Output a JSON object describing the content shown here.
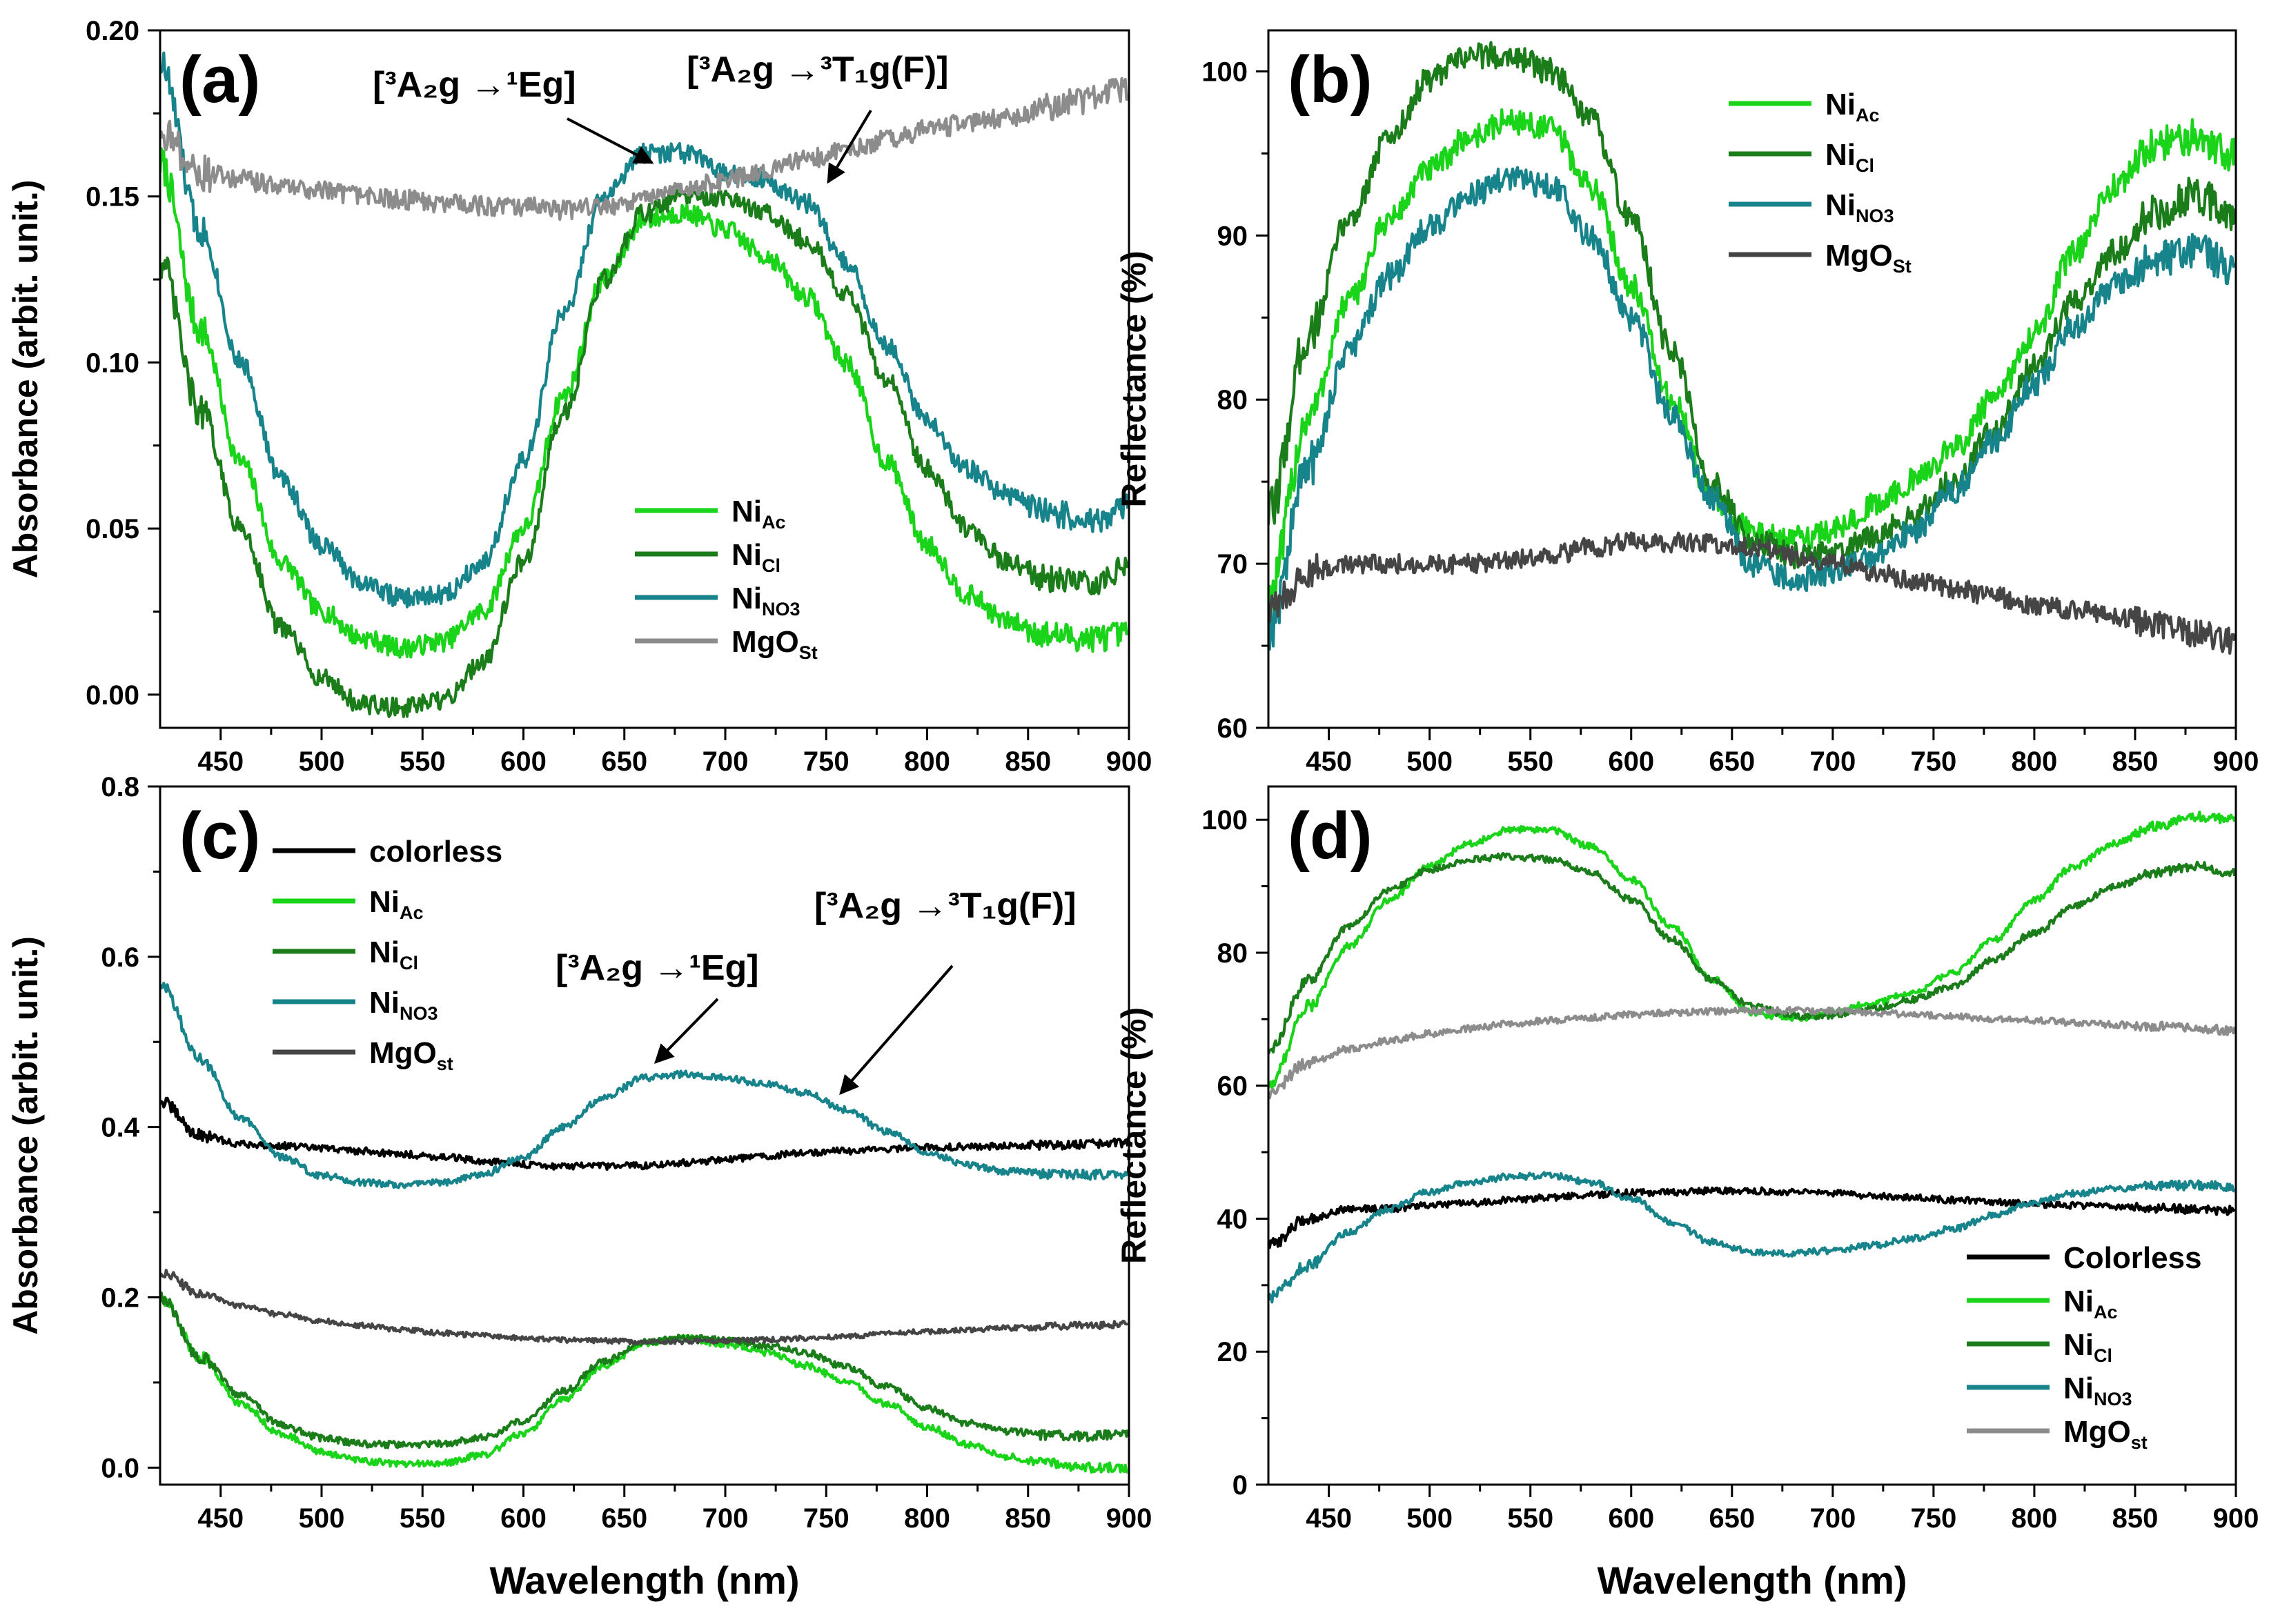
{
  "figure": {
    "xlabel": "Wavelength (nm)"
  },
  "colors": {
    "ni_ac": "#19d419",
    "ni_cl": "#1a7d1a",
    "ni_no3": "#17838a",
    "mgo_light": "#8c8c8c",
    "mgo_dark": "#454545",
    "colorless": "#000000"
  },
  "chart_data": [
    {
      "panel": "(a)",
      "type": "line",
      "xlabel": "Wavelength (nm)",
      "ylabel": "Absorbance (arbit. unit.)",
      "xlim": [
        420,
        900
      ],
      "ylim": [
        -0.01,
        0.2
      ],
      "xticks": [
        450,
        500,
        550,
        600,
        650,
        700,
        750,
        800,
        850,
        900
      ],
      "yticks": [
        0.0,
        0.05,
        0.1,
        0.15,
        0.2
      ],
      "ytick_labels": [
        "0.00",
        "0.05",
        "0.10",
        "0.15",
        "0.20"
      ],
      "x": [
        420,
        440,
        460,
        480,
        500,
        520,
        540,
        560,
        580,
        600,
        620,
        640,
        660,
        680,
        700,
        720,
        740,
        760,
        780,
        800,
        820,
        840,
        860,
        880,
        900
      ],
      "series": [
        {
          "name": "Ni_Ac",
          "label": "Ni",
          "sub": "Ac",
          "color_key": "ni_ac",
          "noise": 0.003,
          "values": [
            0.16,
            0.11,
            0.07,
            0.04,
            0.025,
            0.017,
            0.014,
            0.016,
            0.025,
            0.05,
            0.09,
            0.125,
            0.143,
            0.145,
            0.14,
            0.132,
            0.12,
            0.1,
            0.07,
            0.045,
            0.03,
            0.022,
            0.018,
            0.017,
            0.018
          ]
        },
        {
          "name": "Ni_Cl",
          "label": "Ni",
          "sub": "Cl",
          "color_key": "ni_cl",
          "noise": 0.003,
          "values": [
            0.13,
            0.085,
            0.05,
            0.02,
            0.005,
            -0.003,
            -0.004,
            -0.002,
            0.01,
            0.04,
            0.085,
            0.125,
            0.145,
            0.15,
            0.149,
            0.145,
            0.137,
            0.12,
            0.095,
            0.068,
            0.05,
            0.04,
            0.035,
            0.033,
            0.038
          ]
        },
        {
          "name": "Ni_NO3",
          "label": "Ni",
          "sub": "NO3",
          "color_key": "ni_no3",
          "noise": 0.003,
          "values": [
            0.19,
            0.14,
            0.1,
            0.065,
            0.045,
            0.034,
            0.029,
            0.03,
            0.04,
            0.07,
            0.115,
            0.15,
            0.163,
            0.163,
            0.157,
            0.155,
            0.148,
            0.13,
            0.105,
            0.082,
            0.068,
            0.06,
            0.055,
            0.052,
            0.057
          ]
        },
        {
          "name": "MgO_St",
          "label": "MgO",
          "sub": "St",
          "color_key": "mgo_light",
          "noise": 0.003,
          "values": [
            0.17,
            0.157,
            0.155,
            0.153,
            0.152,
            0.15,
            0.149,
            0.148,
            0.147,
            0.147,
            0.146,
            0.147,
            0.149,
            0.152,
            0.155,
            0.158,
            0.161,
            0.164,
            0.167,
            0.17,
            0.172,
            0.174,
            0.177,
            0.179,
            0.183
          ]
        }
      ],
      "legend_position": "bottom-right",
      "annotations": [
        {
          "text_main": "3A2g → 1Eg",
          "display": "[³A₂g →¹Eg]"
        },
        {
          "text_main": "3A2g → 3T1g(F)",
          "display": "[³A₂g →³T₁g(F)]"
        }
      ]
    },
    {
      "panel": "(b)",
      "type": "line",
      "xlabel": "Wavelength (nm)",
      "ylabel": "Reflectance (%)",
      "xlim": [
        420,
        900
      ],
      "ylim": [
        60,
        102.5
      ],
      "xticks": [
        450,
        500,
        550,
        600,
        650,
        700,
        750,
        800,
        850,
        900
      ],
      "yticks": [
        60,
        70,
        80,
        90,
        100
      ],
      "ytick_labels": [
        "60",
        "70",
        "80",
        "90",
        "100"
      ],
      "x": [
        420,
        440,
        460,
        480,
        500,
        520,
        540,
        560,
        580,
        600,
        620,
        640,
        660,
        680,
        700,
        720,
        740,
        760,
        780,
        800,
        820,
        840,
        860,
        880,
        900
      ],
      "series": [
        {
          "name": "Ni_Ac",
          "label": "Ni",
          "sub": "Ac",
          "color_key": "ni_ac",
          "noise": 0.8,
          "values": [
            68,
            79,
            86,
            91,
            94,
            96,
            97,
            96.5,
            93,
            87,
            80,
            74,
            72,
            71.5,
            72,
            73.5,
            75,
            77,
            80,
            84,
            89,
            93,
            95.5,
            96,
            95
          ]
        },
        {
          "name": "Ni_Cl",
          "label": "Ni",
          "sub": "Cl",
          "color_key": "ni_cl",
          "noise": 0.8,
          "values": [
            73,
            84,
            91,
            96,
            99.5,
            101,
            101,
            100,
            97,
            91,
            83,
            75,
            71.5,
            70.5,
            70.5,
            71.5,
            73,
            75,
            78,
            82,
            86,
            89,
            91.5,
            92.5,
            91
          ]
        },
        {
          "name": "Ni_NO3",
          "label": "Ni",
          "sub": "NO3",
          "color_key": "ni_no3",
          "noise": 0.8,
          "values": [
            66,
            76,
            83,
            87.5,
            90.5,
            92.5,
            93.5,
            93,
            90,
            85,
            79,
            74,
            70,
            69,
            69.5,
            70.5,
            72,
            74.5,
            77.5,
            81,
            84.5,
            87,
            88.5,
            89,
            88
          ]
        },
        {
          "name": "MgO_St",
          "label": "MgO",
          "sub": "St",
          "color_key": "mgo_dark",
          "noise": 0.6,
          "values": [
            67,
            69.5,
            70,
            70,
            70,
            70,
            70.3,
            70.5,
            71,
            71.3,
            71.3,
            71.2,
            71,
            70.5,
            70,
            69.5,
            69,
            68.5,
            68,
            67.5,
            67.2,
            66.8,
            66.3,
            65.8,
            65.3
          ]
        }
      ],
      "legend_position": "top-right"
    },
    {
      "panel": "(c)",
      "type": "line",
      "xlabel": "Wavelength (nm)",
      "ylabel": "Absorbance (arbit. unit.)",
      "xlim": [
        420,
        900
      ],
      "ylim": [
        -0.02,
        0.8
      ],
      "xticks": [
        450,
        500,
        550,
        600,
        650,
        700,
        750,
        800,
        850,
        900
      ],
      "yticks": [
        0.0,
        0.2,
        0.4,
        0.6,
        0.8
      ],
      "ytick_labels": [
        "0.0",
        "0.2",
        "0.4",
        "0.6",
        "0.8"
      ],
      "x": [
        420,
        440,
        460,
        480,
        500,
        520,
        540,
        560,
        580,
        600,
        620,
        640,
        660,
        680,
        700,
        720,
        740,
        760,
        780,
        800,
        820,
        840,
        860,
        880,
        900
      ],
      "series": [
        {
          "name": "colorless",
          "label": "colorless",
          "sub": "",
          "color_key": "colorless",
          "noise": 0.004,
          "values": [
            0.43,
            0.39,
            0.38,
            0.378,
            0.375,
            0.372,
            0.368,
            0.365,
            0.36,
            0.356,
            0.354,
            0.354,
            0.355,
            0.358,
            0.362,
            0.366,
            0.37,
            0.372,
            0.374,
            0.376,
            0.377,
            0.378,
            0.379,
            0.38,
            0.381
          ]
        },
        {
          "name": "Ni_Ac",
          "label": "Ni",
          "sub": "Ac",
          "color_key": "ni_ac",
          "noise": 0.004,
          "values": [
            0.2,
            0.13,
            0.075,
            0.04,
            0.018,
            0.008,
            0.004,
            0.005,
            0.015,
            0.04,
            0.08,
            0.12,
            0.145,
            0.152,
            0.145,
            0.135,
            0.12,
            0.1,
            0.075,
            0.048,
            0.027,
            0.013,
            0.005,
            0.0,
            0.0
          ]
        },
        {
          "name": "Ni_Cl",
          "label": "Ni",
          "sub": "Cl",
          "color_key": "ni_cl",
          "noise": 0.004,
          "values": [
            0.2,
            0.13,
            0.085,
            0.05,
            0.035,
            0.028,
            0.027,
            0.028,
            0.035,
            0.055,
            0.09,
            0.125,
            0.148,
            0.153,
            0.15,
            0.143,
            0.135,
            0.118,
            0.095,
            0.07,
            0.052,
            0.043,
            0.038,
            0.037,
            0.04
          ]
        },
        {
          "name": "Ni_NO3",
          "label": "Ni",
          "sub": "NO3",
          "color_key": "ni_no3",
          "noise": 0.004,
          "values": [
            0.57,
            0.48,
            0.41,
            0.365,
            0.343,
            0.335,
            0.332,
            0.335,
            0.345,
            0.365,
            0.4,
            0.435,
            0.458,
            0.462,
            0.458,
            0.45,
            0.44,
            0.42,
            0.395,
            0.37,
            0.355,
            0.348,
            0.345,
            0.344,
            0.345
          ]
        },
        {
          "name": "MgO_st",
          "label": "MgO",
          "sub": "st",
          "color_key": "mgo_dark",
          "noise": 0.003,
          "values": [
            0.23,
            0.205,
            0.19,
            0.18,
            0.172,
            0.167,
            0.162,
            0.158,
            0.155,
            0.152,
            0.15,
            0.149,
            0.148,
            0.148,
            0.149,
            0.15,
            0.152,
            0.154,
            0.157,
            0.16,
            0.162,
            0.164,
            0.166,
            0.167,
            0.168
          ]
        }
      ],
      "legend_position": "top-left",
      "annotations": [
        {
          "text_main": "3A2g → 1Eg",
          "display": "[³A₂g →¹Eg]"
        },
        {
          "text_main": "3A2g → 3T1g(F)",
          "display": "[³A₂g →³T₁g(F)]"
        }
      ]
    },
    {
      "panel": "(d)",
      "type": "line",
      "xlabel": "Wavelength (nm)",
      "ylabel": "Reflectance (%)",
      "xlim": [
        420,
        900
      ],
      "ylim": [
        0,
        105
      ],
      "xticks": [
        450,
        500,
        550,
        600,
        650,
        700,
        750,
        800,
        850,
        900
      ],
      "yticks": [
        0,
        20,
        40,
        60,
        80,
        100
      ],
      "ytick_labels": [
        "0",
        "20",
        "40",
        "60",
        "80",
        "100"
      ],
      "x": [
        420,
        440,
        460,
        480,
        500,
        520,
        540,
        560,
        580,
        600,
        620,
        640,
        660,
        680,
        700,
        720,
        740,
        760,
        780,
        800,
        820,
        840,
        860,
        880,
        900
      ],
      "series": [
        {
          "name": "Colorless",
          "label": "Colorless",
          "sub": "",
          "color_key": "colorless",
          "noise": 0.5,
          "values": [
            36,
            40,
            41.5,
            41.5,
            42,
            42.3,
            42.8,
            43.2,
            43.6,
            43.9,
            44,
            44.2,
            44.2,
            44,
            43.8,
            43.5,
            43.2,
            42.8,
            42.5,
            42.2,
            42,
            41.8,
            41.6,
            41.4,
            41.2
          ]
        },
        {
          "name": "Ni_Ac",
          "label": "Ni",
          "sub": "Ac",
          "color_key": "ni_ac",
          "noise": 0.5,
          "values": [
            60,
            72,
            81,
            88,
            93,
            96.5,
            98.5,
            98.5,
            96,
            91,
            84,
            76,
            71,
            70,
            71,
            72.5,
            74,
            77,
            82,
            88,
            93,
            96.5,
            99,
            100.5,
            100
          ]
        },
        {
          "name": "Ni_Cl",
          "label": "Ni",
          "sub": "Cl",
          "color_key": "ni_cl",
          "noise": 0.5,
          "values": [
            65,
            76,
            84,
            89.5,
            92.5,
            94,
            94.5,
            94,
            92,
            88,
            82,
            76,
            72,
            70.5,
            70.5,
            71.5,
            73,
            75,
            79,
            83,
            87,
            90,
            92,
            93,
            92
          ]
        },
        {
          "name": "Ni_NO3",
          "label": "Ni",
          "sub": "NO3",
          "color_key": "ni_no3",
          "noise": 0.5,
          "values": [
            28,
            33,
            38,
            41.5,
            44,
            45.5,
            46.3,
            46.5,
            45.5,
            43,
            39.5,
            36.5,
            35,
            34.8,
            35.2,
            36,
            37,
            38.5,
            40.5,
            42.5,
            43.8,
            44.5,
            45,
            45,
            44.8
          ]
        },
        {
          "name": "MgO_st",
          "label": "MgO",
          "sub": "st",
          "color_key": "mgo_light",
          "noise": 0.5,
          "values": [
            59,
            63.5,
            65.5,
            66.8,
            67.8,
            68.6,
            69.3,
            69.8,
            70.3,
            70.7,
            71,
            71.2,
            71.3,
            71.3,
            71.2,
            71,
            70.7,
            70.4,
            70.1,
            69.8,
            69.5,
            69.2,
            68.9,
            68.6,
            68.3
          ]
        }
      ],
      "legend_position": "bottom-right"
    }
  ]
}
